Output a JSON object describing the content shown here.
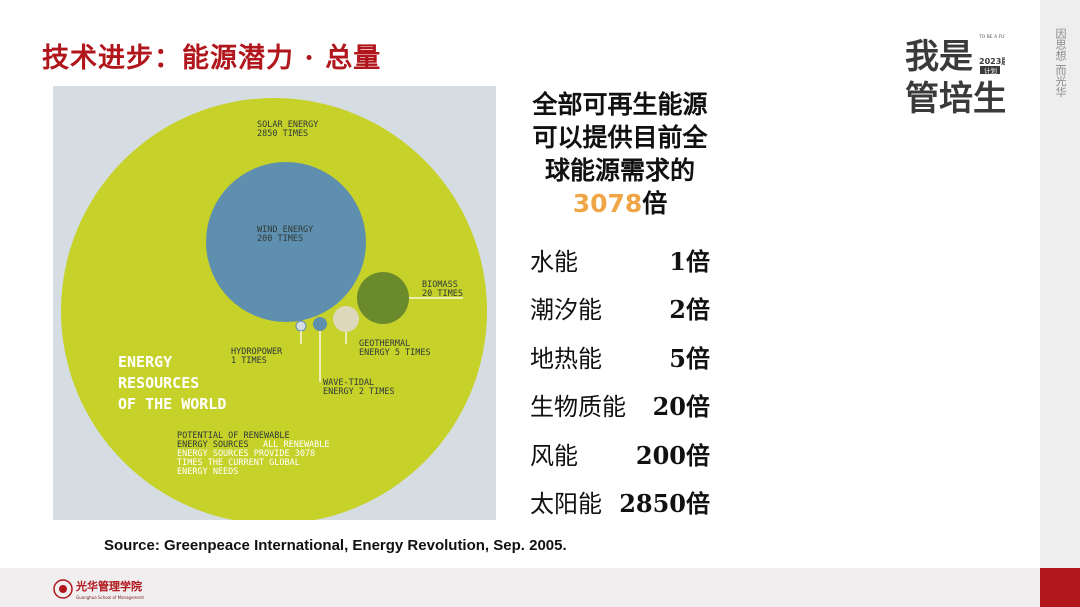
{
  "slide": {
    "title": "技术进步：能源潜力 · 总量",
    "right_strip_text": "因思想 而光华",
    "logo": {
      "main_text": "我是管培生",
      "tagline": "TO BE A FUTURE LEADER",
      "year": "2023届",
      "badge": "计划"
    },
    "headline_lines": [
      "全部可再生能源",
      "可以提供目前全",
      "球能源需求的"
    ],
    "headline_number": "3078",
    "headline_suffix": "倍",
    "rows": [
      {
        "label": "水能",
        "value": "1倍"
      },
      {
        "label": "潮汐能",
        "value": "2倍"
      },
      {
        "label": "地热能",
        "value": "5倍"
      },
      {
        "label": "生物质能",
        "value": "20倍"
      },
      {
        "label": "风能",
        "value": "200倍"
      },
      {
        "label": "太阳能",
        "value": "2850倍"
      }
    ],
    "source": "Source: Greenpeace International, Energy Revolution, Sep. 2005.",
    "school_name_cn": "光华管理学院",
    "school_name_en": "Guanghua School of Management"
  },
  "diagram": {
    "colors": {
      "background": "#d5dde3",
      "solar": "#c6d12a",
      "wind": "#5f8fae",
      "biomass": "#6b8a2c",
      "geothermal": "#ddd8bc",
      "hydro_tidal": "#5f8fae"
    },
    "labels": {
      "solar": [
        "SOLAR ENERGY",
        "2850 TIMES"
      ],
      "wind": [
        "WIND ENERGY",
        "200 TIMES"
      ],
      "biomass": [
        "BIOMASS",
        "20 TIMES"
      ],
      "hydropower": [
        "HYDROPOWER",
        "1 TIMES"
      ],
      "geothermal": [
        "GEOTHERMAL",
        "ENERGY 5 TIMES"
      ],
      "wave_tidal": [
        "WAVE-TIDAL",
        "ENERGY 2 TIMES"
      ],
      "main": [
        "ENERGY",
        "RESOURCES",
        "OF THE WORLD"
      ],
      "potential_dark": [
        "POTENTIAL OF RENEWABLE",
        "ENERGY SOURCES"
      ],
      "potential_light_inline": "ALL RENEWABLE",
      "potential_light": [
        "ENERGY SOURCES PROVIDE 3078",
        "TIMES THE CURRENT GLOBAL",
        "ENERGY NEEDS"
      ]
    }
  }
}
